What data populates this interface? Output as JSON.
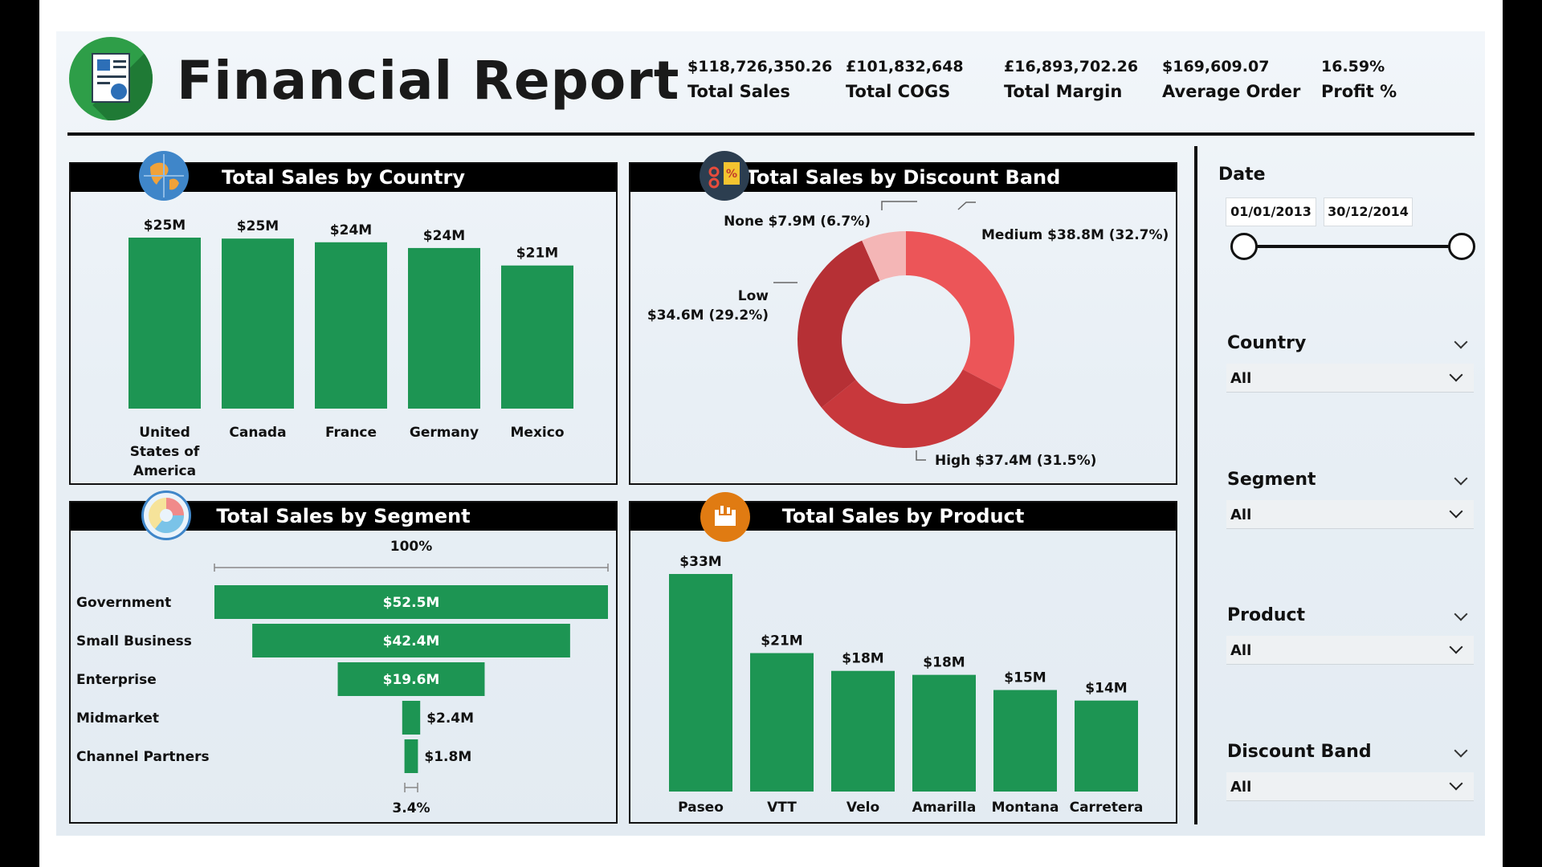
{
  "header": {
    "title": "Financial Report",
    "kpis": [
      {
        "value": "$118,726,350.26",
        "label": "Total Sales"
      },
      {
        "value": "£101,832,648",
        "label": "Total COGS"
      },
      {
        "value": "£16,893,702.26",
        "label": "Total Margin"
      },
      {
        "value": "$169,609.07",
        "label": "Average Order"
      },
      {
        "value": "16.59%",
        "label": "Profit %"
      }
    ]
  },
  "colors": {
    "bar_green": "#1d9553",
    "donut_medium": "#ec5558",
    "donut_high": "#c8383c",
    "donut_low": "#b63035",
    "donut_none": "#f4b6b6"
  },
  "chart_data": [
    {
      "type": "bar",
      "title": "Total Sales by Country",
      "categories": [
        "United States of America",
        "Canada",
        "France",
        "Germany",
        "Mexico"
      ],
      "category_lines": [
        [
          "United",
          "States of",
          "America"
        ],
        [
          "Canada"
        ],
        [
          "France"
        ],
        [
          "Germany"
        ],
        [
          "Mexico"
        ]
      ],
      "values": [
        25.03,
        24.89,
        24.35,
        23.51,
        20.95
      ],
      "data_labels": [
        "$25M",
        "$25M",
        "$24M",
        "$24M",
        "$21M"
      ],
      "ylim": [
        0,
        25.03
      ]
    },
    {
      "type": "pie",
      "title": "Total Sales by Discount Band",
      "slices": [
        {
          "name": "Medium",
          "value": 38.8,
          "percent": 32.7,
          "label": "Medium $38.8M (32.7%)"
        },
        {
          "name": "High",
          "value": 37.4,
          "percent": 31.5,
          "label": "High $37.4M (31.5%)"
        },
        {
          "name": "Low",
          "value": 34.6,
          "percent": 29.2,
          "label_lines": [
            "Low",
            "$34.6M (29.2%)"
          ]
        },
        {
          "name": "None",
          "value": 7.9,
          "percent": 6.7,
          "label": "None $7.9M (6.7%)"
        }
      ]
    },
    {
      "type": "bar",
      "title": "Total Sales by Segment",
      "orientation": "funnel",
      "categories": [
        "Government",
        "Small Business",
        "Enterprise",
        "Midmarket",
        "Channel Partners"
      ],
      "values": [
        52.5,
        42.4,
        19.6,
        2.4,
        1.8
      ],
      "data_labels": [
        "$52.5M",
        "$42.4M",
        "$19.6M",
        "$2.4M",
        "$1.8M"
      ],
      "top_label": "100%",
      "bottom_label": "3.4%"
    },
    {
      "type": "bar",
      "title": "Total Sales by Product",
      "categories": [
        "Paseo",
        "VTT",
        "Velo",
        "Amarilla",
        "Montana",
        "Carretera"
      ],
      "values": [
        33.0,
        21.0,
        18.3,
        17.7,
        15.4,
        13.8
      ],
      "data_labels": [
        "$33M",
        "$21M",
        "$18M",
        "$18M",
        "$15M",
        "$14M"
      ],
      "ylim": [
        0,
        33
      ]
    }
  ],
  "slicers": {
    "date": {
      "title": "Date",
      "start": "01/01/2013",
      "end": "30/12/2014"
    },
    "dropdowns": [
      {
        "title": "Country",
        "value": "All"
      },
      {
        "title": "Segment",
        "value": "All"
      },
      {
        "title": "Product",
        "value": "All"
      },
      {
        "title": "Discount Band",
        "value": "All"
      }
    ]
  }
}
